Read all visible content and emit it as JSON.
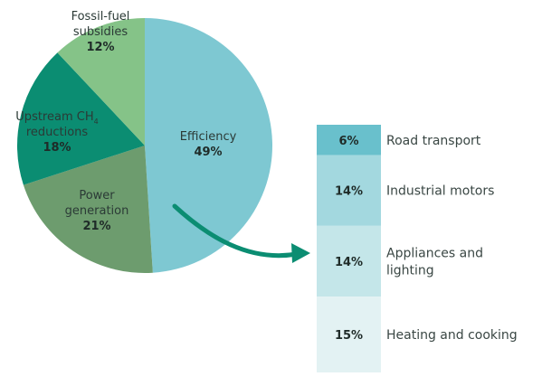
{
  "chart_data": [
    {
      "type": "pie",
      "title": "",
      "slices": [
        {
          "label_lines": [
            "Efficiency"
          ],
          "value": 49,
          "value_label": "49%",
          "color": "#7ec8d2"
        },
        {
          "label_lines": [
            "Power",
            "generation"
          ],
          "value": 21,
          "value_label": "21%",
          "color": "#6d9c6e"
        },
        {
          "label_lines": [
            "Upstream CH",
            "reductions"
          ],
          "label_subscript": "4",
          "value": 18,
          "value_label": "18%",
          "color": "#0b8d72"
        },
        {
          "label_lines": [
            "Fossil-fuel",
            "subsidies"
          ],
          "value": 12,
          "value_label": "12%",
          "color": "#85c388"
        }
      ]
    },
    {
      "type": "bar",
      "orientation": "stacked-vertical",
      "title": "",
      "segments": [
        {
          "label_lines": [
            "Road transport"
          ],
          "value": 6,
          "value_label": "6%",
          "color": "#69c0cc"
        },
        {
          "label_lines": [
            "Industrial motors"
          ],
          "value": 14,
          "value_label": "14%",
          "color": "#a3d8df"
        },
        {
          "label_lines": [
            "Appliances and",
            "lighting"
          ],
          "value": 14,
          "value_label": "14%",
          "color": "#c4e6e9"
        },
        {
          "label_lines": [
            "Heating and cooking"
          ],
          "value": 15,
          "value_label": "15%",
          "color": "#e3f2f3"
        }
      ]
    }
  ],
  "colors": {
    "arrow": "#0b8d72"
  }
}
